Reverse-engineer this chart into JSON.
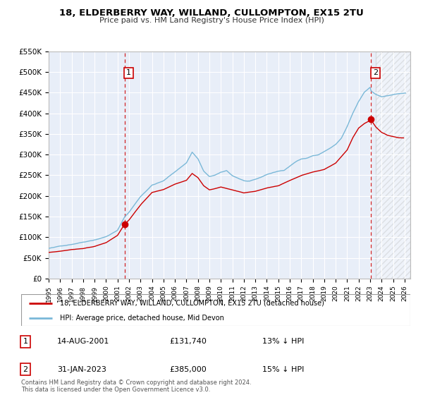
{
  "title": "18, ELDERBERRY WAY, WILLAND, CULLOMPTON, EX15 2TU",
  "subtitle": "Price paid vs. HM Land Registry's House Price Index (HPI)",
  "legend_line1": "18, ELDERBERRY WAY, WILLAND, CULLOMPTON, EX15 2TU (detached house)",
  "legend_line2": "HPI: Average price, detached house, Mid Devon",
  "annotation1_label": "1",
  "annotation1_date": "14-AUG-2001",
  "annotation1_price": "£131,740",
  "annotation1_hpi": "13% ↓ HPI",
  "annotation2_label": "2",
  "annotation2_date": "31-JAN-2023",
  "annotation2_price": "£385,000",
  "annotation2_hpi": "15% ↓ HPI",
  "footer1": "Contains HM Land Registry data © Crown copyright and database right 2024.",
  "footer2": "This data is licensed under the Open Government Licence v3.0.",
  "sale1_date_num": 2001.619,
  "sale1_price": 131740,
  "sale2_date_num": 2023.083,
  "sale2_price": 385000,
  "vline1_date_num": 2001.619,
  "vline2_date_num": 2023.083,
  "xmin": 1995.0,
  "xmax": 2026.5,
  "ymin": 0,
  "ymax": 550000,
  "yticks": [
    0,
    50000,
    100000,
    150000,
    200000,
    250000,
    300000,
    350000,
    400000,
    450000,
    500000,
    550000
  ],
  "ytick_labels": [
    "£0",
    "£50K",
    "£100K",
    "£150K",
    "£200K",
    "£250K",
    "£300K",
    "£350K",
    "£400K",
    "£450K",
    "£500K",
    "£550K"
  ],
  "hpi_color": "#7ab8d8",
  "sale_color": "#cc0000",
  "vline_color": "#cc0000",
  "plot_bg": "#e8eef8",
  "grid_color": "#ffffff",
  "hatch_color": "#cccccc",
  "border_color": "#bbbbbb"
}
